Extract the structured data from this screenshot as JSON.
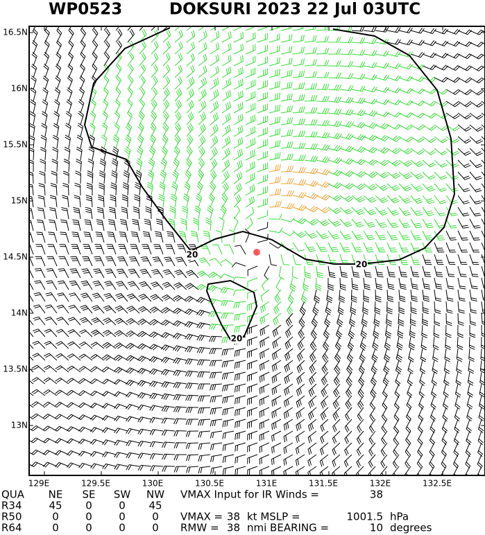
{
  "header": {
    "id": "WP0523",
    "title": "DOKSURI 2023 22 Jul 03UTC"
  },
  "x_axis": [
    "129E",
    "129.5E",
    "130E",
    "130.5E",
    "131E",
    "131.5E",
    "132E",
    "132.5E"
  ],
  "y_axis": [
    "16.5N",
    "16N",
    "15.5N",
    "15N",
    "14.5N",
    "14N",
    "13.5N",
    "13N"
  ],
  "contour_labels": [
    "20",
    "20",
    "20"
  ],
  "table": {
    "columns": [
      "QUA",
      "NE",
      "SE",
      "SW",
      "NW"
    ],
    "rows": [
      [
        "R34",
        45,
        0,
        0,
        45
      ],
      [
        "R50",
        0,
        0,
        0,
        0
      ],
      [
        "R64",
        0,
        0,
        0,
        0
      ]
    ]
  },
  "info": [
    {
      "label": "VMAX Input for IR Winds =",
      "value": 38
    },
    {
      "label": "VMAX =",
      "value": 38,
      "unit": "kt MSLP =",
      "value2": 1001.5,
      "unit2": "hPa"
    },
    {
      "label": "RMW =",
      "value": 38,
      "unit": "nmi BEARING =",
      "value2": 10,
      "unit2": "degrees"
    }
  ]
}
